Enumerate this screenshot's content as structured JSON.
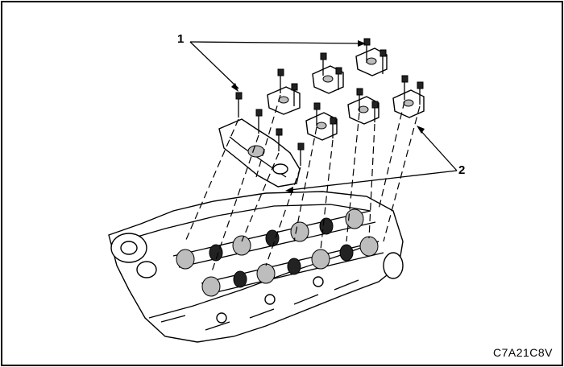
{
  "figure": {
    "callouts": [
      {
        "id": "1",
        "label": "1"
      },
      {
        "id": "2",
        "label": "2"
      }
    ],
    "figure_code": "C7A21C8V"
  },
  "colors": {
    "line": "#000000",
    "background": "#ffffff"
  }
}
